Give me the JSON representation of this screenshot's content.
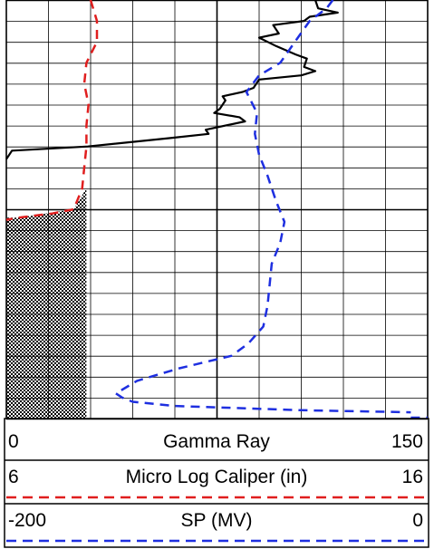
{
  "colors": {
    "grid": "#000000",
    "gamma_ray": "#000000",
    "caliper": "#e01e1e",
    "sp": "#1e2fe0",
    "fill_pattern": "checkerboard"
  },
  "header": {
    "tracks": [
      {
        "left": "0",
        "label": "Gamma Ray",
        "right": "150",
        "line": "solid-black"
      },
      {
        "left": "6",
        "label": "Micro Log Caliper (in)",
        "right": "16",
        "line": "dashed-red"
      },
      {
        "left": "-200",
        "label": "SP (MV)",
        "right": "0",
        "line": "dashed-blue"
      }
    ]
  },
  "chart_data": {
    "type": "line",
    "grid": true,
    "depth_axis": {
      "direction": "down",
      "range": [
        0,
        100
      ],
      "labels_printed": false
    },
    "series": [
      {
        "name": "Gamma Ray",
        "range": [
          0,
          150
        ],
        "style": "solid",
        "points": [
          [
            0,
            110
          ],
          [
            2,
            111
          ],
          [
            3,
            118
          ],
          [
            4,
            108
          ],
          [
            5,
            106
          ],
          [
            6,
            95
          ],
          [
            8,
            97
          ],
          [
            9,
            90
          ],
          [
            10,
            93
          ],
          [
            11,
            96
          ],
          [
            13,
            103
          ],
          [
            14,
            107
          ],
          [
            16,
            106
          ],
          [
            17,
            110
          ],
          [
            18,
            105
          ],
          [
            19,
            90
          ],
          [
            21,
            88
          ],
          [
            22,
            84
          ],
          [
            23,
            77
          ],
          [
            24,
            78
          ],
          [
            26,
            76
          ],
          [
            27,
            74
          ],
          [
            28,
            83
          ],
          [
            29,
            85
          ],
          [
            31,
            71
          ],
          [
            32,
            72
          ],
          [
            33,
            58
          ],
          [
            35,
            29
          ],
          [
            36,
            2
          ],
          [
            38,
            0
          ]
        ]
      },
      {
        "name": "Micro Log Caliper (in)",
        "range": [
          6,
          16
        ],
        "style": "dashed",
        "points": [
          [
            0,
            8.0
          ],
          [
            5,
            8.15
          ],
          [
            10,
            8.15
          ],
          [
            15,
            7.9
          ],
          [
            20,
            7.85
          ],
          [
            25,
            7.95
          ],
          [
            30,
            7.9
          ],
          [
            35,
            7.9
          ],
          [
            40,
            7.85
          ],
          [
            45,
            7.8
          ],
          [
            50,
            7.6
          ],
          [
            51,
            7.1
          ],
          [
            52,
            6.3
          ],
          [
            52.5,
            6.0
          ]
        ]
      },
      {
        "name": "SP (MV)",
        "range": [
          -200,
          0
        ],
        "style": "dashed",
        "points": [
          [
            0,
            -45
          ],
          [
            2,
            -48
          ],
          [
            5,
            -56
          ],
          [
            10,
            -63
          ],
          [
            15,
            -70
          ],
          [
            18,
            -80
          ],
          [
            22,
            -86
          ],
          [
            27,
            -81
          ],
          [
            32,
            -82
          ],
          [
            37,
            -80
          ],
          [
            42,
            -76
          ],
          [
            48,
            -72
          ],
          [
            53,
            -68
          ],
          [
            58,
            -70
          ],
          [
            63,
            -74
          ],
          [
            68,
            -75
          ],
          [
            73,
            -76
          ],
          [
            78,
            -78
          ],
          [
            82,
            -85
          ],
          [
            85,
            -93
          ],
          [
            88,
            -118
          ],
          [
            91,
            -138
          ],
          [
            94,
            -148
          ],
          [
            95,
            -145
          ],
          [
            96,
            -140
          ],
          [
            97,
            -120
          ],
          [
            98,
            -60
          ],
          [
            98.5,
            -8
          ]
        ]
      }
    ],
    "fill": {
      "between": [
        "left edge",
        "Micro Log Caliper (in)"
      ],
      "depth_range": [
        52,
        100
      ],
      "pattern": "checkerboard"
    }
  }
}
